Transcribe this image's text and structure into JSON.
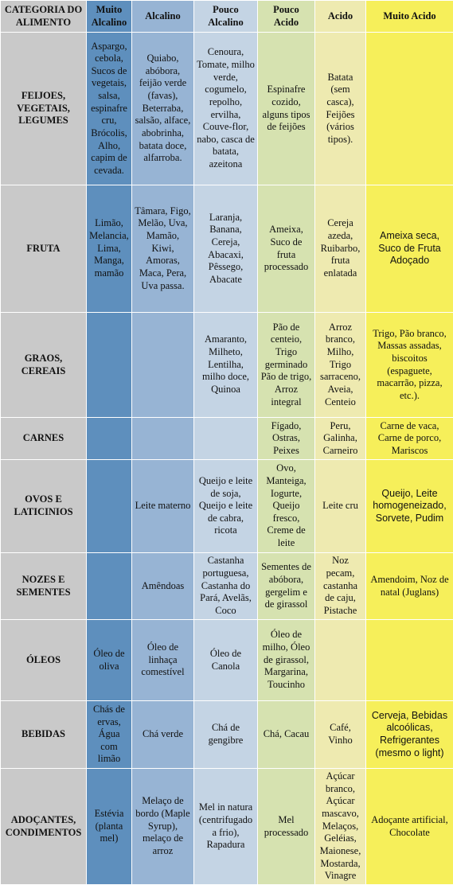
{
  "columns": [
    "CATEGORIA DO ALIMENTO",
    "Muito Alcalino",
    "Alcalino",
    "Pouco Alcalino",
    "Pouco Acido",
    "Acido",
    "Muito Acido"
  ],
  "colors": {
    "category": "#c9c9c9",
    "muito_alcalino": "#5e8fbd",
    "alcalino": "#97b4d4",
    "pouco_alcalino": "#c4d4e4",
    "pouco_acido": "#d6e2b0",
    "acido": "#eeeab0",
    "muito_acido": "#f6ef5a"
  },
  "rows": [
    {
      "category": "FEIJOES, VEGETAIS, LEGUMES",
      "cells": [
        "Aspargo, cebola, Sucos de vegetais, salsa, espinafre cru, Brócolis, Alho, capim de cevada.",
        "Quiabo, abóbora, feijão verde (favas), Beterraba, salsão, alface, abobrinha, batata doce, alfarroba.",
        "Cenoura, Tomate, milho verde, cogumelo, repolho, ervilha, Couve-flor, nabo, casca de batata, azeitona",
        "Espinafre cozido, alguns tipos de feijões",
        "Batata (sem casca), Feijões (vários tipos).",
        ""
      ]
    },
    {
      "category": "FRUTA",
      "cells": [
        "Limão, Melancia, Lima, Manga, mamão",
        "Tâmara, Figo, Melão, Uva, Mamão, Kiwi, Amoras, Maca, Pera, Uva passa.",
        "Laranja, Banana, Cereja, Abacaxi, Pêssego, Abacate",
        "Ameixa, Suco de fruta processado",
        "Cereja azeda, Ruibarbo, fruta enlatada",
        "Ameixa seca, Suco de Fruta Adoçado"
      ]
    },
    {
      "category": "GRAOS, CEREAIS",
      "cells": [
        "",
        "",
        "Amaranto, Milheto, Lentilha, milho doce, Quinoa",
        "Pão de centeio, Trigo germinado Pão de trigo, Arroz integral",
        "Arroz branco, Milho, Trigo sarraceno, Aveia, Centeio",
        "Trigo, Pão branco, Massas assadas, biscoitos (espaguete, macarrão, pizza, etc.)."
      ]
    },
    {
      "category": "CARNES",
      "cells": [
        "",
        "",
        "",
        "Fígado, Ostras, Peixes",
        "Peru, Galinha, Carneiro",
        "Carne de vaca, Carne de porco, Mariscos"
      ]
    },
    {
      "category": "OVOS E LATICINIOS",
      "cells": [
        "",
        "Leite materno",
        "Queijo e leite de soja, Queijo e leite de cabra, ricota",
        "Ovo, Manteiga, Iogurte, Queijo fresco, Creme de leite",
        "Leite cru",
        "Queijo, Leite homogeneizado, Sorvete, Pudim"
      ]
    },
    {
      "category": "NOZES E SEMENTES",
      "cells": [
        "",
        "Amêndoas",
        "Castanha portuguesa, Castanha do Pará, Avelãs, Coco",
        "Sementes de abóbora, gergelim e de girassol",
        "Noz pecam, castanha de caju, Pistache",
        "Amendoim, Noz de natal (Juglans)"
      ]
    },
    {
      "category": "ÓLEOS",
      "cells": [
        "Óleo de oliva",
        "Óleo de linhaça comestível",
        "Óleo de Canola",
        "Óleo de milho, Óleo de girassol, Margarina, Toucinho",
        "",
        ""
      ]
    },
    {
      "category": "BEBIDAS",
      "cells": [
        "Chás de ervas, Água com limão",
        "Chá verde",
        "Chá de gengibre",
        "Chá, Cacau",
        "Café, Vinho",
        "Cerveja, Bebidas alcoólicas, Refrigerantes (mesmo o light)"
      ]
    },
    {
      "category": "ADOÇANTES, CONDIMENTOS",
      "cells": [
        "Estévia (planta mel)",
        "Melaço de bordo (Maple Syrup), melaço de arroz",
        "Mel in natura (centrifugado a frio), Rapadura",
        "Mel processado",
        "Açúcar branco, Açúcar mascavo, Melaços, Geléias, Maionese, Mostarda, Vinagre",
        "Adoçante artificial, Chocolate"
      ]
    }
  ]
}
